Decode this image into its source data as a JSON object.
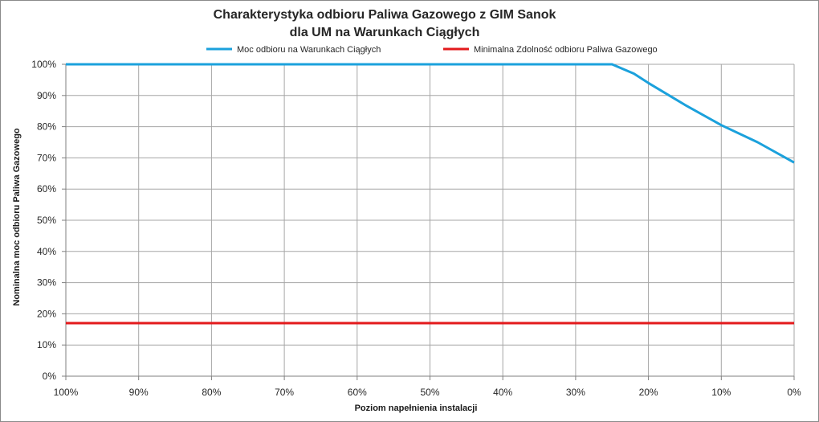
{
  "chart_data": {
    "type": "line",
    "title_lines": [
      "Charakterystyka odbioru Paliwa Gazowego z GIM Sanok",
      "dla UM na Warunkach Ciągłych"
    ],
    "xlabel": "Poziom napełnienia instalacji",
    "ylabel": "Nominalna moc odbioru Paliwa Gazowego",
    "x_reversed": true,
    "xlim": [
      100,
      0
    ],
    "ylim": [
      0,
      100
    ],
    "x_ticks": [
      100,
      90,
      80,
      70,
      60,
      50,
      40,
      30,
      20,
      10,
      0
    ],
    "y_ticks": [
      0,
      10,
      20,
      30,
      40,
      50,
      60,
      70,
      80,
      90,
      100
    ],
    "x_tick_labels": [
      "100%",
      "90%",
      "80%",
      "70%",
      "60%",
      "50%",
      "40%",
      "30%",
      "20%",
      "10%",
      "0%"
    ],
    "y_tick_labels": [
      "0%",
      "10%",
      "20%",
      "30%",
      "40%",
      "50%",
      "60%",
      "70%",
      "80%",
      "90%",
      "100%"
    ],
    "grid": true,
    "legend_position": "top",
    "series": [
      {
        "name": "Moc odbioru na Warunkach Ciągłych",
        "color": "#1ba1dc",
        "x": [
          100,
          90,
          80,
          70,
          60,
          50,
          40,
          30,
          25,
          24,
          22,
          20,
          15,
          10,
          5,
          0
        ],
        "y": [
          100,
          100,
          100,
          100,
          100,
          100,
          100,
          100,
          100,
          99,
          97,
          94,
          87,
          80.5,
          75,
          68.5
        ]
      },
      {
        "name": "Minimalna Zdolność odbioru Paliwa Gazowego",
        "color": "#e31a1c",
        "x": [
          100,
          0
        ],
        "y": [
          17,
          17
        ]
      }
    ]
  }
}
